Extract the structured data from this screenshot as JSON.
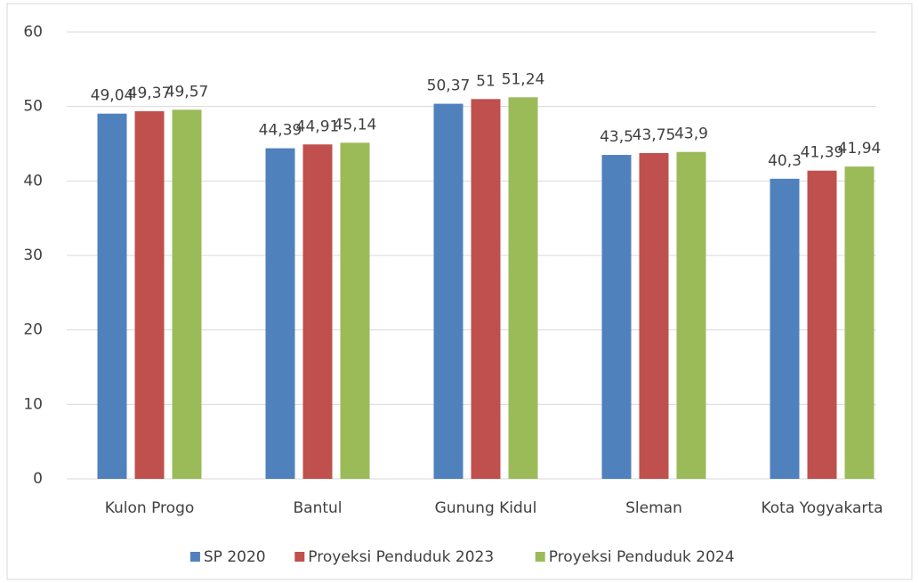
{
  "chart_data": {
    "type": "bar",
    "categories": [
      "Kulon Progo",
      "Bantul",
      "Gunung Kidul",
      "Sleman",
      "Kota Yogyakarta"
    ],
    "series": [
      {
        "name": "SP 2020",
        "color": "#4f81bd",
        "values": [
          49.04,
          44.39,
          50.37,
          43.5,
          40.3
        ],
        "value_labels": [
          "49,04",
          "44,39",
          "50,37",
          "43,5",
          "40,3"
        ]
      },
      {
        "name": "Proyeksi Penduduk 2023",
        "color": "#c0504d",
        "values": [
          49.37,
          44.91,
          51,
          43.75,
          41.39
        ],
        "value_labels": [
          "49,37",
          "44,91",
          "51",
          "43,75",
          "41,39"
        ]
      },
      {
        "name": "Proyeksi Penduduk 2024",
        "color": "#9bbb59",
        "values": [
          49.57,
          45.14,
          51.24,
          43.9,
          41.94
        ],
        "value_labels": [
          "49,57",
          "45,14",
          "51,24",
          "43,9",
          "41,94"
        ]
      }
    ],
    "ylim": [
      0,
      60
    ],
    "yticks": [
      0,
      10,
      20,
      30,
      40,
      50,
      60
    ],
    "grid": true,
    "legend": "bottom"
  }
}
